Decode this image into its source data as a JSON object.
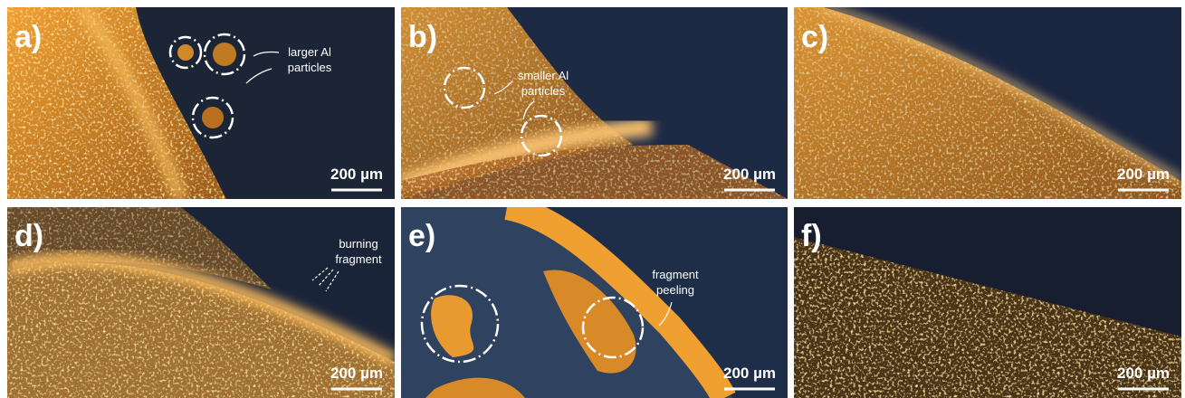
{
  "panels": [
    {
      "label": "a)",
      "scale_bar": "200 µm",
      "annotation": [
        "larger Al",
        "particles"
      ]
    },
    {
      "label": "b)",
      "scale_bar": "200 µm",
      "annotation": [
        "smaller Al",
        "particles"
      ]
    },
    {
      "label": "c)",
      "scale_bar": "200 µm"
    },
    {
      "label": "d)",
      "scale_bar": "200 µm",
      "annotation": [
        "burning",
        "fragment"
      ]
    },
    {
      "label": "e)",
      "scale_bar": "200 µm",
      "annotation": [
        "fragment",
        "peeling"
      ]
    },
    {
      "label": "f)",
      "scale_bar": "200 µm"
    }
  ]
}
